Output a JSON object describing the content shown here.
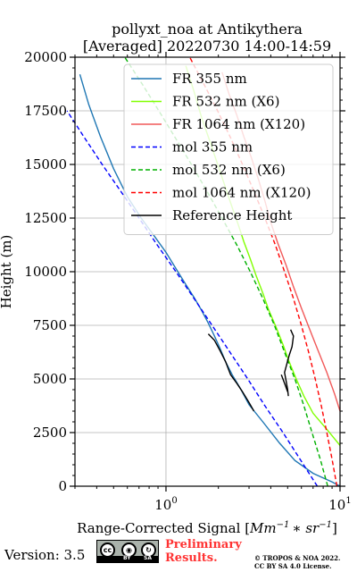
{
  "chart_data": {
    "type": "line",
    "title_line1": "pollyxt_noa at Antikythera",
    "title_line2": "[Averaged] 20220730 14:00-14:59",
    "xlabel_prefix": "Range-Corrected Signal [",
    "xlabel_unit": "Mm",
    "xlabel_exp1": "−1",
    "xlabel_mid": "∗ sr",
    "xlabel_exp2": "−1",
    "xlabel_suffix": "]",
    "ylabel": "Height (m)",
    "xscale": "log",
    "xlim": [
      0.3,
      10
    ],
    "ylim": [
      0,
      20000
    ],
    "x_ticks": [
      {
        "value": 1,
        "base": "10",
        "exp": "0"
      },
      {
        "value": 10,
        "base": "10",
        "exp": "1"
      }
    ],
    "y_ticks": [
      0,
      2500,
      5000,
      7500,
      10000,
      12500,
      15000,
      17500,
      20000
    ],
    "grid": true,
    "legend_position": "top-right",
    "series": [
      {
        "name": "FR 355 nm",
        "color": "#1f77b4",
        "style": "solid",
        "points": [
          [
            10,
            0
          ],
          [
            9,
            200
          ],
          [
            7,
            600
          ],
          [
            5.5,
            1200
          ],
          [
            4.5,
            2000
          ],
          [
            3.6,
            3000
          ],
          [
            3,
            3800
          ],
          [
            2.7,
            4500
          ],
          [
            2.4,
            5200
          ],
          [
            2.2,
            5800
          ],
          [
            2.05,
            6400
          ],
          [
            1.9,
            7000
          ],
          [
            1.75,
            7600
          ],
          [
            1.6,
            8200
          ],
          [
            1.45,
            8800
          ],
          [
            1.3,
            9400
          ],
          [
            1.15,
            10100
          ],
          [
            1,
            10900
          ],
          [
            0.85,
            11700
          ],
          [
            0.72,
            12500
          ],
          [
            0.6,
            13500
          ],
          [
            0.5,
            14800
          ],
          [
            0.42,
            16300
          ],
          [
            0.36,
            17800
          ],
          [
            0.32,
            19200
          ]
        ]
      },
      {
        "name": "FR 532 nm (X6)",
        "color": "#80ff00",
        "style": "solid",
        "points": [
          [
            10,
            1900
          ],
          [
            8.5,
            2600
          ],
          [
            7,
            3400
          ],
          [
            6.2,
            4200
          ],
          [
            5.6,
            5000
          ],
          [
            5.1,
            5800
          ],
          [
            4.7,
            6600
          ],
          [
            4.3,
            7400
          ],
          [
            3.9,
            8200
          ],
          [
            3.6,
            9000
          ],
          [
            3.3,
            9800
          ],
          [
            3.05,
            10600
          ],
          [
            2.8,
            11400
          ],
          [
            2.6,
            12200
          ],
          [
            2.4,
            13000
          ],
          [
            2.2,
            13900
          ],
          [
            2,
            14900
          ],
          [
            1.8,
            16000
          ],
          [
            1.6,
            17200
          ],
          [
            1.45,
            18400
          ],
          [
            1.3,
            19600
          ]
        ]
      },
      {
        "name": "FR 1064 nm (X120)",
        "color": "#f15858",
        "style": "solid",
        "points": [
          [
            10,
            3500
          ],
          [
            9.3,
            4300
          ],
          [
            8.4,
            5300
          ],
          [
            7.5,
            6300
          ],
          [
            6.7,
            7300
          ],
          [
            6,
            8300
          ],
          [
            5.4,
            9300
          ],
          [
            4.9,
            10300
          ],
          [
            4.4,
            11300
          ],
          [
            4,
            12300
          ],
          [
            3.7,
            13300
          ],
          [
            3.4,
            14300
          ],
          [
            3.1,
            15300
          ],
          [
            2.8,
            16300
          ],
          [
            2.55,
            17300
          ],
          [
            2.3,
            18300
          ],
          [
            2.1,
            19300
          ]
        ]
      },
      {
        "name": "mol 355 nm",
        "color": "#0000ff",
        "style": "dashed",
        "points": [
          [
            7.4,
            0
          ],
          [
            5.9,
            1250
          ],
          [
            4.7,
            2500
          ],
          [
            3.7,
            3750
          ],
          [
            2.95,
            5000
          ],
          [
            2.33,
            6250
          ],
          [
            1.84,
            7500
          ],
          [
            1.45,
            8750
          ],
          [
            1.14,
            10000
          ],
          [
            0.89,
            11250
          ],
          [
            0.7,
            12500
          ],
          [
            0.55,
            13750
          ],
          [
            0.43,
            15000
          ],
          [
            0.34,
            16250
          ],
          [
            0.27,
            17500
          ]
        ]
      },
      {
        "name": "mol 532 nm (X6)",
        "color": "#00b000",
        "style": "dashed",
        "points": [
          [
            8.5,
            0
          ],
          [
            7.7,
            1250
          ],
          [
            6.9,
            2500
          ],
          [
            6.2,
            3750
          ],
          [
            5.5,
            5000
          ],
          [
            4.8,
            6250
          ],
          [
            4.2,
            7500
          ],
          [
            3.6,
            8750
          ],
          [
            3.05,
            10000
          ],
          [
            2.55,
            11250
          ],
          [
            2.1,
            12500
          ],
          [
            1.72,
            13750
          ],
          [
            1.4,
            15000
          ],
          [
            1.13,
            16250
          ],
          [
            0.91,
            17500
          ],
          [
            0.73,
            18750
          ],
          [
            0.58,
            20000
          ]
        ]
      },
      {
        "name": "mol 1064 nm (X120)",
        "color": "#ff0000",
        "style": "dashed",
        "points": [
          [
            9.6,
            0
          ],
          [
            9,
            1250
          ],
          [
            8.4,
            2500
          ],
          [
            7.8,
            3750
          ],
          [
            7.2,
            5000
          ],
          [
            6.6,
            6250
          ],
          [
            6,
            7500
          ],
          [
            5.4,
            8750
          ],
          [
            4.8,
            10000
          ],
          [
            4.25,
            11250
          ],
          [
            3.7,
            12500
          ],
          [
            3.2,
            13750
          ],
          [
            2.75,
            15000
          ],
          [
            2.35,
            16250
          ],
          [
            1.98,
            17500
          ],
          [
            1.65,
            18750
          ],
          [
            1.37,
            20000
          ]
        ]
      },
      {
        "name": "Reference Height",
        "color": "#000000",
        "style": "solid",
        "segments": [
          [
            [
              1.75,
              7100
            ],
            [
              1.9,
              6800
            ],
            [
              2.05,
              6300
            ],
            [
              2.2,
              5800
            ],
            [
              2.35,
              5200
            ],
            [
              2.55,
              4800
            ],
            [
              2.75,
              4400
            ],
            [
              3,
              3900
            ],
            [
              3.2,
              3500
            ]
          ],
          [
            [
              5.2,
              7300
            ],
            [
              5.4,
              7000
            ],
            [
              5.3,
              6500
            ],
            [
              5.1,
              6100
            ],
            [
              4.95,
              5700
            ],
            [
              4.8,
              5300
            ],
            [
              4.9,
              4900
            ],
            [
              5,
              4500
            ],
            [
              5.05,
              4200
            ]
          ],
          [
            [
              4.6,
              5200
            ],
            [
              4.8,
              4800
            ],
            [
              5,
              4400
            ]
          ]
        ]
      }
    ]
  },
  "footer": {
    "version": "Version: 3.5",
    "license_badge": {
      "icons": [
        "cc-icon",
        "attribution-icon",
        "share-alike-icon"
      ],
      "cc_text": "cc",
      "by_text": "BY",
      "sa_text": "SA"
    },
    "preliminary_line1": "Preliminary",
    "preliminary_line2": "Results.",
    "copyright_line1": "© TROPOS & NOA 2022.",
    "copyright_line2": "CC BY SA 4.0 License."
  }
}
